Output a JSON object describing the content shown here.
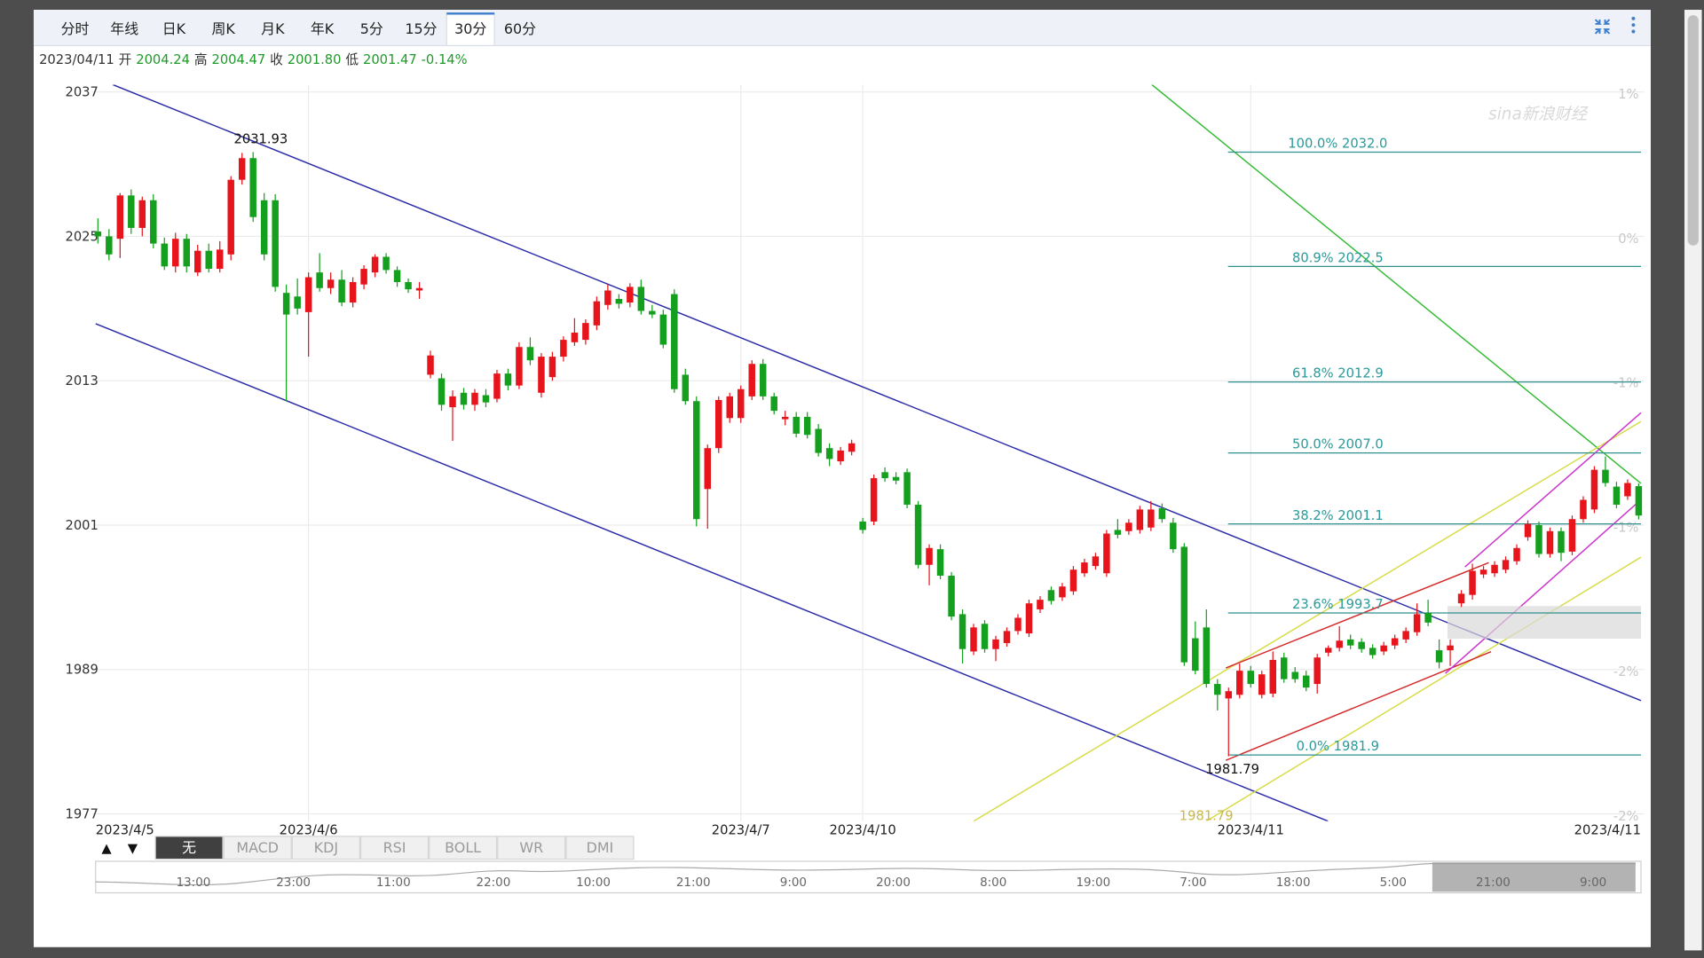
{
  "chart_data": {
    "type": "candlestick",
    "period_tabs": [
      "分时",
      "年线",
      "日K",
      "周K",
      "月K",
      "年K",
      "5分",
      "15分",
      "30分",
      "60分"
    ],
    "selected_tab": "30分",
    "quote": {
      "date": "2023/04/11",
      "items": [
        {
          "label": "开",
          "value": "2004.24"
        },
        {
          "label": "高",
          "value": "2004.47"
        },
        {
          "label": "收",
          "value": "2001.80"
        },
        {
          "label": "低",
          "value": "2001.47"
        }
      ],
      "change": "-0.14%"
    },
    "watermark": "sina新浪财经",
    "up_color": "#e8141c",
    "down_color": "#14a01e",
    "grid": true,
    "ylim": [
      1976.4,
      2037.6
    ],
    "yticks": [
      2037,
      2025,
      2013,
      2001,
      1989,
      1977
    ],
    "y2ticklabels": [
      "1%",
      "0%",
      "-1%",
      "-1%",
      "-2%",
      "-2%"
    ],
    "categories": [
      "2023/4/5",
      null,
      null,
      null,
      null,
      null,
      null,
      null,
      null,
      null,
      null,
      null,
      null,
      null,
      null,
      null,
      null,
      null,
      null,
      "2023/4/6",
      null,
      null,
      null,
      null,
      null,
      null,
      null,
      null,
      null,
      null,
      null,
      null,
      null,
      null,
      null,
      null,
      null,
      null,
      null,
      null,
      null,
      null,
      null,
      null,
      null,
      null,
      null,
      null,
      null,
      null,
      null,
      null,
      null,
      null,
      null,
      null,
      null,
      null,
      "2023/4/7",
      null,
      null,
      null,
      null,
      null,
      null,
      null,
      null,
      null,
      null,
      "2023/4/10",
      null,
      null,
      null,
      null,
      null,
      null,
      null,
      null,
      null,
      null,
      null,
      null,
      null,
      null,
      null,
      null,
      null,
      null,
      null,
      null,
      null,
      null,
      null,
      null,
      null,
      null,
      null,
      null,
      null,
      null,
      null,
      null,
      null,
      null,
      "2023/4/11",
      null,
      null,
      null,
      null,
      null,
      null,
      null,
      null,
      null,
      null,
      null,
      null,
      null,
      null,
      null,
      null,
      null,
      null,
      null,
      null,
      null,
      null,
      null,
      null,
      null,
      null,
      null,
      null,
      null,
      null,
      null,
      null,
      null,
      null,
      "2023/4/11"
    ],
    "ohlc": [
      [
        2025.4,
        2026.5,
        2024.4,
        2025.0
      ],
      [
        2025.0,
        2025.6,
        2023.0,
        2023.5
      ],
      [
        2024.8,
        2028.6,
        2023.2,
        2028.4
      ],
      [
        2028.4,
        2028.9,
        2025.2,
        2025.7
      ],
      [
        2025.7,
        2028.3,
        2025.0,
        2028.0
      ],
      [
        2028.0,
        2028.5,
        2024.0,
        2024.4
      ],
      [
        2024.4,
        2024.9,
        2022.2,
        2022.5
      ],
      [
        2022.5,
        2025.3,
        2022.0,
        2024.8
      ],
      [
        2024.8,
        2025.2,
        2022.0,
        2022.5
      ],
      [
        2022.0,
        2024.3,
        2021.7,
        2023.8
      ],
      [
        2023.8,
        2024.4,
        2022.0,
        2022.3
      ],
      [
        2022.3,
        2024.6,
        2022.0,
        2023.9
      ],
      [
        2023.5,
        2030.0,
        2023.0,
        2029.7
      ],
      [
        2029.7,
        2031.93,
        2029.3,
        2031.5
      ],
      [
        2031.5,
        2032.0,
        2026.2,
        2026.6
      ],
      [
        2028.0,
        2028.6,
        2023.0,
        2023.5
      ],
      [
        2028.0,
        2028.5,
        2020.4,
        2020.8
      ],
      [
        2020.3,
        2021.0,
        2011.3,
        2018.5
      ],
      [
        2020.0,
        2021.5,
        2018.5,
        2019.0
      ],
      [
        2018.7,
        2022.0,
        2015.0,
        2021.6
      ],
      [
        2022.0,
        2023.6,
        2020.4,
        2020.7
      ],
      [
        2020.7,
        2022.0,
        2020.2,
        2021.4
      ],
      [
        2021.4,
        2022.2,
        2019.2,
        2019.5
      ],
      [
        2019.5,
        2021.6,
        2019.1,
        2021.2
      ],
      [
        2021.0,
        2022.6,
        2020.6,
        2022.3
      ],
      [
        2022.0,
        2023.5,
        2021.6,
        2023.3
      ],
      [
        2023.3,
        2023.6,
        2021.9,
        2022.2
      ],
      [
        2022.2,
        2022.5,
        2020.8,
        2021.2
      ],
      [
        2021.2,
        2021.5,
        2020.3,
        2020.6
      ],
      [
        2020.5,
        2021.2,
        2019.8,
        2020.7
      ],
      [
        2013.5,
        2015.5,
        2013.2,
        2015.1
      ],
      [
        2013.2,
        2013.6,
        2010.5,
        2011.0
      ],
      [
        2010.8,
        2012.2,
        2008.0,
        2011.7
      ],
      [
        2012.0,
        2012.4,
        2010.6,
        2011.0
      ],
      [
        2011.0,
        2012.3,
        2010.5,
        2012.0
      ],
      [
        2011.8,
        2012.3,
        2010.8,
        2011.2
      ],
      [
        2011.5,
        2013.9,
        2011.2,
        2013.6
      ],
      [
        2013.6,
        2014.0,
        2012.2,
        2012.6
      ],
      [
        2012.6,
        2016.2,
        2012.3,
        2015.8
      ],
      [
        2015.8,
        2016.6,
        2014.3,
        2014.7
      ],
      [
        2012.0,
        2015.3,
        2011.6,
        2015.0
      ],
      [
        2013.3,
        2015.4,
        2013.0,
        2015.0
      ],
      [
        2015.0,
        2016.7,
        2014.6,
        2016.4
      ],
      [
        2016.2,
        2018.2,
        2015.9,
        2017.0
      ],
      [
        2016.4,
        2018.1,
        2016.0,
        2017.8
      ],
      [
        2017.6,
        2020.0,
        2017.2,
        2019.6
      ],
      [
        2019.3,
        2021.0,
        2018.9,
        2020.5
      ],
      [
        2019.8,
        2020.2,
        2019.0,
        2019.4
      ],
      [
        2019.5,
        2021.1,
        2019.1,
        2020.8
      ],
      [
        2020.8,
        2021.4,
        2018.5,
        2018.8
      ],
      [
        2018.8,
        2019.3,
        2018.2,
        2018.5
      ],
      [
        2018.5,
        2018.9,
        2015.7,
        2016.0
      ],
      [
        2020.2,
        2020.6,
        2012.0,
        2012.3
      ],
      [
        2013.5,
        2014.0,
        2011.0,
        2011.3
      ],
      [
        2011.3,
        2011.7,
        2000.9,
        2001.5
      ],
      [
        2004.0,
        2007.7,
        2000.7,
        2007.4
      ],
      [
        2007.4,
        2011.7,
        2007.0,
        2011.4
      ],
      [
        2009.9,
        2012.0,
        2009.5,
        2011.7
      ],
      [
        2009.9,
        2012.6,
        2009.5,
        2012.3
      ],
      [
        2011.7,
        2014.7,
        2011.4,
        2014.4
      ],
      [
        2014.4,
        2014.8,
        2011.4,
        2011.7
      ],
      [
        2011.7,
        2012.0,
        2010.2,
        2010.5
      ],
      [
        2009.8,
        2010.5,
        2009.3,
        2010.0
      ],
      [
        2010.0,
        2010.4,
        2008.3,
        2008.6
      ],
      [
        2010.0,
        2010.4,
        2008.2,
        2008.5
      ],
      [
        2009.0,
        2009.4,
        2006.7,
        2007.0
      ],
      [
        2007.4,
        2007.8,
        2005.9,
        2006.5
      ],
      [
        2006.3,
        2007.5,
        2006.0,
        2007.2
      ],
      [
        2007.1,
        2008.1,
        2006.8,
        2007.8
      ],
      [
        2001.3,
        2001.6,
        2000.3,
        2000.6
      ],
      [
        2001.3,
        2005.2,
        2001.0,
        2004.9
      ],
      [
        2005.4,
        2005.8,
        2004.6,
        2004.9
      ],
      [
        2005.0,
        2005.4,
        2004.4,
        2004.7
      ],
      [
        2005.4,
        2005.7,
        2002.4,
        2002.7
      ],
      [
        2002.7,
        2003.0,
        1997.4,
        1997.7
      ],
      [
        1997.7,
        1999.4,
        1996.0,
        1999.1
      ],
      [
        1999.0,
        1999.4,
        1996.5,
        1996.8
      ],
      [
        1996.8,
        1997.1,
        1993.1,
        1993.4
      ],
      [
        1993.6,
        1994.0,
        1989.5,
        1990.7
      ],
      [
        1990.5,
        1992.8,
        1990.2,
        1992.5
      ],
      [
        1992.8,
        1993.1,
        1990.4,
        1990.7
      ],
      [
        1990.7,
        1991.8,
        1989.7,
        1991.5
      ],
      [
        1991.2,
        1992.5,
        1990.9,
        1992.2
      ],
      [
        1992.2,
        1993.6,
        1991.9,
        1993.3
      ],
      [
        1992.0,
        1994.8,
        1991.7,
        1994.5
      ],
      [
        1994.0,
        1995.1,
        1993.7,
        1994.8
      ],
      [
        1995.6,
        1995.9,
        1994.4,
        1994.7
      ],
      [
        1995.0,
        1996.2,
        1994.7,
        1995.9
      ],
      [
        1995.5,
        1997.6,
        1995.2,
        1997.3
      ],
      [
        1997.0,
        1998.2,
        1996.7,
        1997.9
      ],
      [
        1997.6,
        1998.7,
        1997.3,
        1998.4
      ],
      [
        1997.0,
        2000.6,
        1996.7,
        2000.3
      ],
      [
        2000.6,
        2001.5,
        1999.9,
        2000.2
      ],
      [
        2000.5,
        2001.5,
        2000.2,
        2001.2
      ],
      [
        2000.6,
        2002.6,
        2000.3,
        2002.3
      ],
      [
        2000.8,
        2003.0,
        2000.5,
        2002.3
      ],
      [
        2002.4,
        2002.8,
        2001.2,
        2001.5
      ],
      [
        2001.2,
        2001.6,
        1998.7,
        1999.0
      ],
      [
        1999.2,
        1999.5,
        1989.3,
        1989.6
      ],
      [
        1991.6,
        1993.0,
        1988.6,
        1988.9
      ],
      [
        1992.5,
        1994.0,
        1987.5,
        1987.8
      ],
      [
        1987.8,
        1988.2,
        1985.6,
        1986.9
      ],
      [
        1986.6,
        1987.5,
        1981.79,
        1987.2
      ],
      [
        1986.9,
        1989.5,
        1986.6,
        1988.9
      ],
      [
        1988.9,
        1989.3,
        1987.5,
        1987.8
      ],
      [
        1986.9,
        1988.9,
        1986.6,
        1988.6
      ],
      [
        1987.0,
        1990.5,
        1986.7,
        1989.8
      ],
      [
        1990.0,
        1990.4,
        1987.9,
        1988.2
      ],
      [
        1988.8,
        1989.2,
        1987.9,
        1988.2
      ],
      [
        1988.5,
        1988.9,
        1987.2,
        1987.5
      ],
      [
        1987.8,
        1990.3,
        1987.0,
        1990.0
      ],
      [
        1990.4,
        1991.0,
        1990.1,
        1990.8
      ],
      [
        1990.8,
        1992.6,
        1990.5,
        1991.4
      ],
      [
        1991.5,
        1991.9,
        1990.7,
        1991.0
      ],
      [
        1991.3,
        1991.6,
        1990.4,
        1990.7
      ],
      [
        1990.8,
        1991.1,
        1989.9,
        1990.2
      ],
      [
        1990.5,
        1991.3,
        1990.2,
        1991.0
      ],
      [
        1991.0,
        1991.9,
        1990.7,
        1991.6
      ],
      [
        1991.5,
        1992.5,
        1991.2,
        1992.2
      ],
      [
        1992.1,
        1994.5,
        1991.8,
        1993.6
      ],
      [
        1993.7,
        1994.8,
        1992.6,
        1992.9
      ],
      [
        1990.6,
        1991.5,
        1989.1,
        1989.6
      ],
      [
        1990.6,
        1991.5,
        1989.3,
        1991.0
      ],
      [
        1994.5,
        1995.6,
        1994.2,
        1995.3
      ],
      [
        1995.2,
        1997.8,
        1994.8,
        1997.2
      ],
      [
        1996.9,
        1997.6,
        1996.6,
        1997.3
      ],
      [
        1997.0,
        1998.0,
        1996.7,
        1997.7
      ],
      [
        1997.3,
        1998.4,
        1997.0,
        1998.1
      ],
      [
        1998.0,
        1999.4,
        1997.7,
        1999.1
      ],
      [
        2000.0,
        2001.4,
        1999.7,
        2001.1
      ],
      [
        2001.0,
        2001.3,
        1998.3,
        1998.6
      ],
      [
        1998.6,
        2000.8,
        1998.3,
        2000.5
      ],
      [
        2000.5,
        2000.8,
        1998.0,
        1998.7
      ],
      [
        1998.8,
        2001.8,
        1998.5,
        2001.5
      ],
      [
        2001.5,
        2003.4,
        2001.2,
        2003.1
      ],
      [
        2002.3,
        2005.9,
        2002.0,
        2005.6
      ],
      [
        2005.6,
        2006.7,
        2004.2,
        2004.5
      ],
      [
        2004.2,
        2004.6,
        2002.4,
        2002.7
      ],
      [
        2003.4,
        2004.8,
        2003.1,
        2004.5
      ],
      [
        2004.24,
        2004.47,
        2001.47,
        2001.8
      ]
    ],
    "fib_levels": [
      {
        "label": "100.0% 2032.0",
        "value": 2032.0
      },
      {
        "label": "80.9% 2022.5",
        "value": 2022.5
      },
      {
        "label": "61.8% 2012.9",
        "value": 2012.9
      },
      {
        "label": "50.0% 2007.0",
        "value": 2007.0
      },
      {
        "label": "38.2% 2001.1",
        "value": 2001.1
      },
      {
        "label": "23.6% 1993.7",
        "value": 1993.7
      },
      {
        "label": "0.0% 1981.9",
        "value": 1981.9
      }
    ],
    "annotations": [
      "2031.93",
      "1981.79",
      "1981.79"
    ],
    "indicator_tabs": [
      "▲",
      "▼",
      "无",
      "MACD",
      "KDJ",
      "RSI",
      "BOLL",
      "WR",
      "DMI"
    ],
    "navigator_labels": [
      "13:00",
      "23:00",
      "11:00",
      "22:00",
      "10:00",
      "21:00",
      "9:00",
      "20:00",
      "8:00",
      "19:00",
      "7:00",
      "18:00",
      "5:00",
      "21:00",
      "9:00"
    ]
  }
}
